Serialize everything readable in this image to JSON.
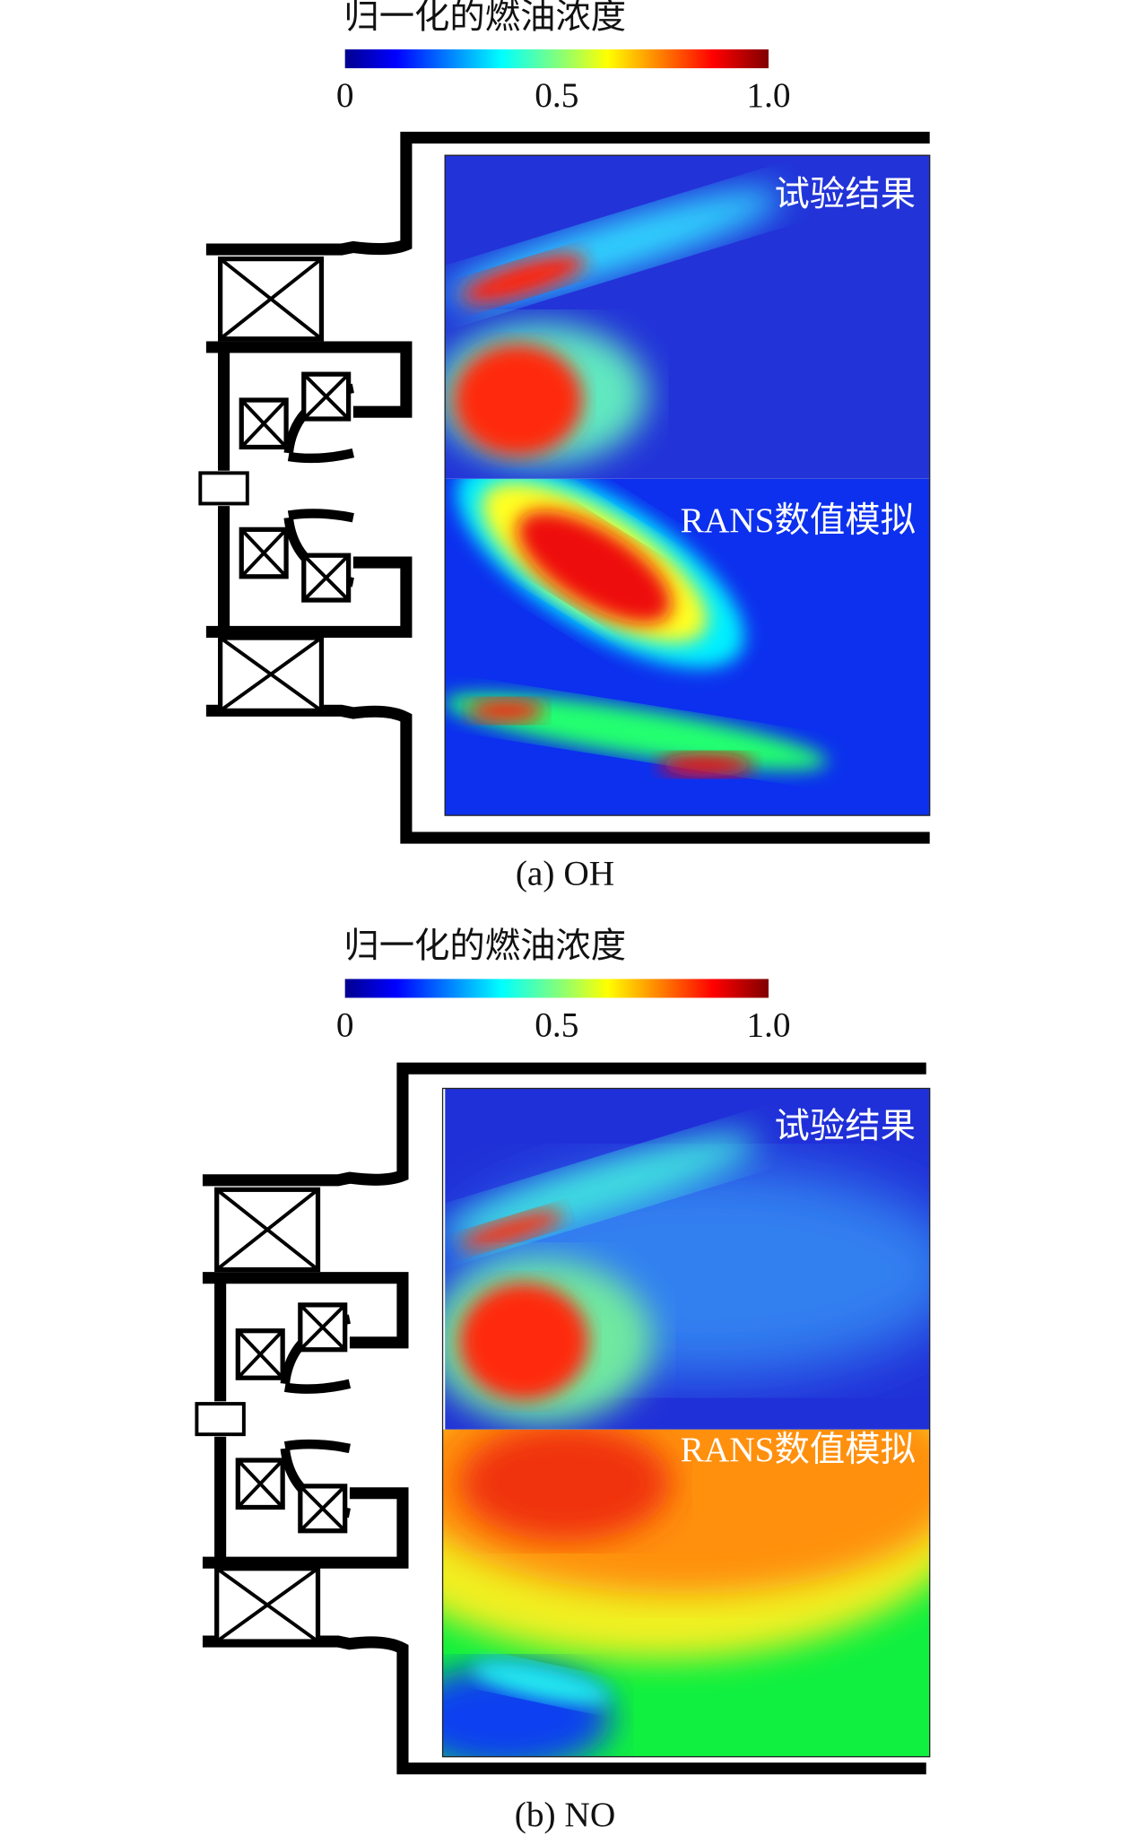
{
  "panels": [
    {
      "colorbar": {
        "title": "归一化的燃油浓度",
        "ticks": [
          "0",
          "0.5",
          "1.0"
        ]
      },
      "labels": {
        "experiment": "试验结果",
        "simulation": "RANS数值模拟"
      },
      "caption": "(a) OH"
    },
    {
      "colorbar": {
        "title": "归一化的燃油浓度",
        "ticks": [
          "0",
          "0.5",
          "1.0"
        ]
      },
      "labels": {
        "experiment": "试验结果",
        "simulation": "RANS数值模拟"
      },
      "caption": "(b) NO"
    }
  ]
}
